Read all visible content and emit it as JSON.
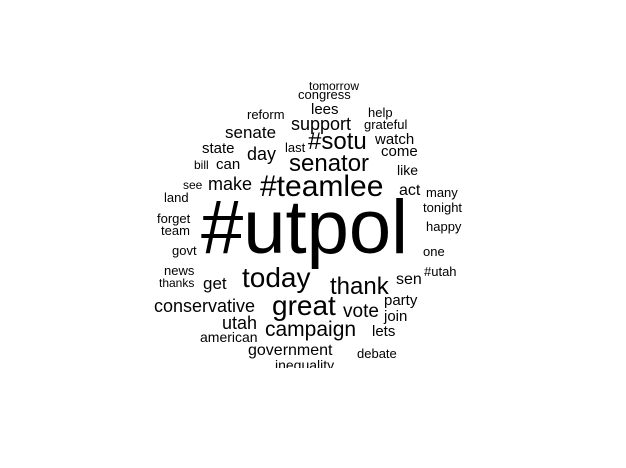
{
  "canvas": {
    "background": "#ffffff",
    "text_color": "#000000"
  },
  "words": [
    "tomorrow",
    "congress",
    "lees",
    "help",
    "reform",
    "grateful",
    "support",
    "senate",
    "watch",
    "#sotu",
    "last",
    "come",
    "state",
    "day",
    "senator",
    "bill",
    "can",
    "like",
    "make",
    "#teamlee",
    "see",
    "act",
    "many",
    "land",
    "tonight",
    "#utpol",
    "forget",
    "happy",
    "team",
    "govt",
    "one",
    "news",
    "#utah",
    "today",
    "thanks",
    "get",
    "sen",
    "thank",
    "party",
    "conservative",
    "great",
    "vote",
    "join",
    "utah",
    "campaign",
    "lets",
    "american",
    "government",
    "debate",
    "inequality"
  ]
}
